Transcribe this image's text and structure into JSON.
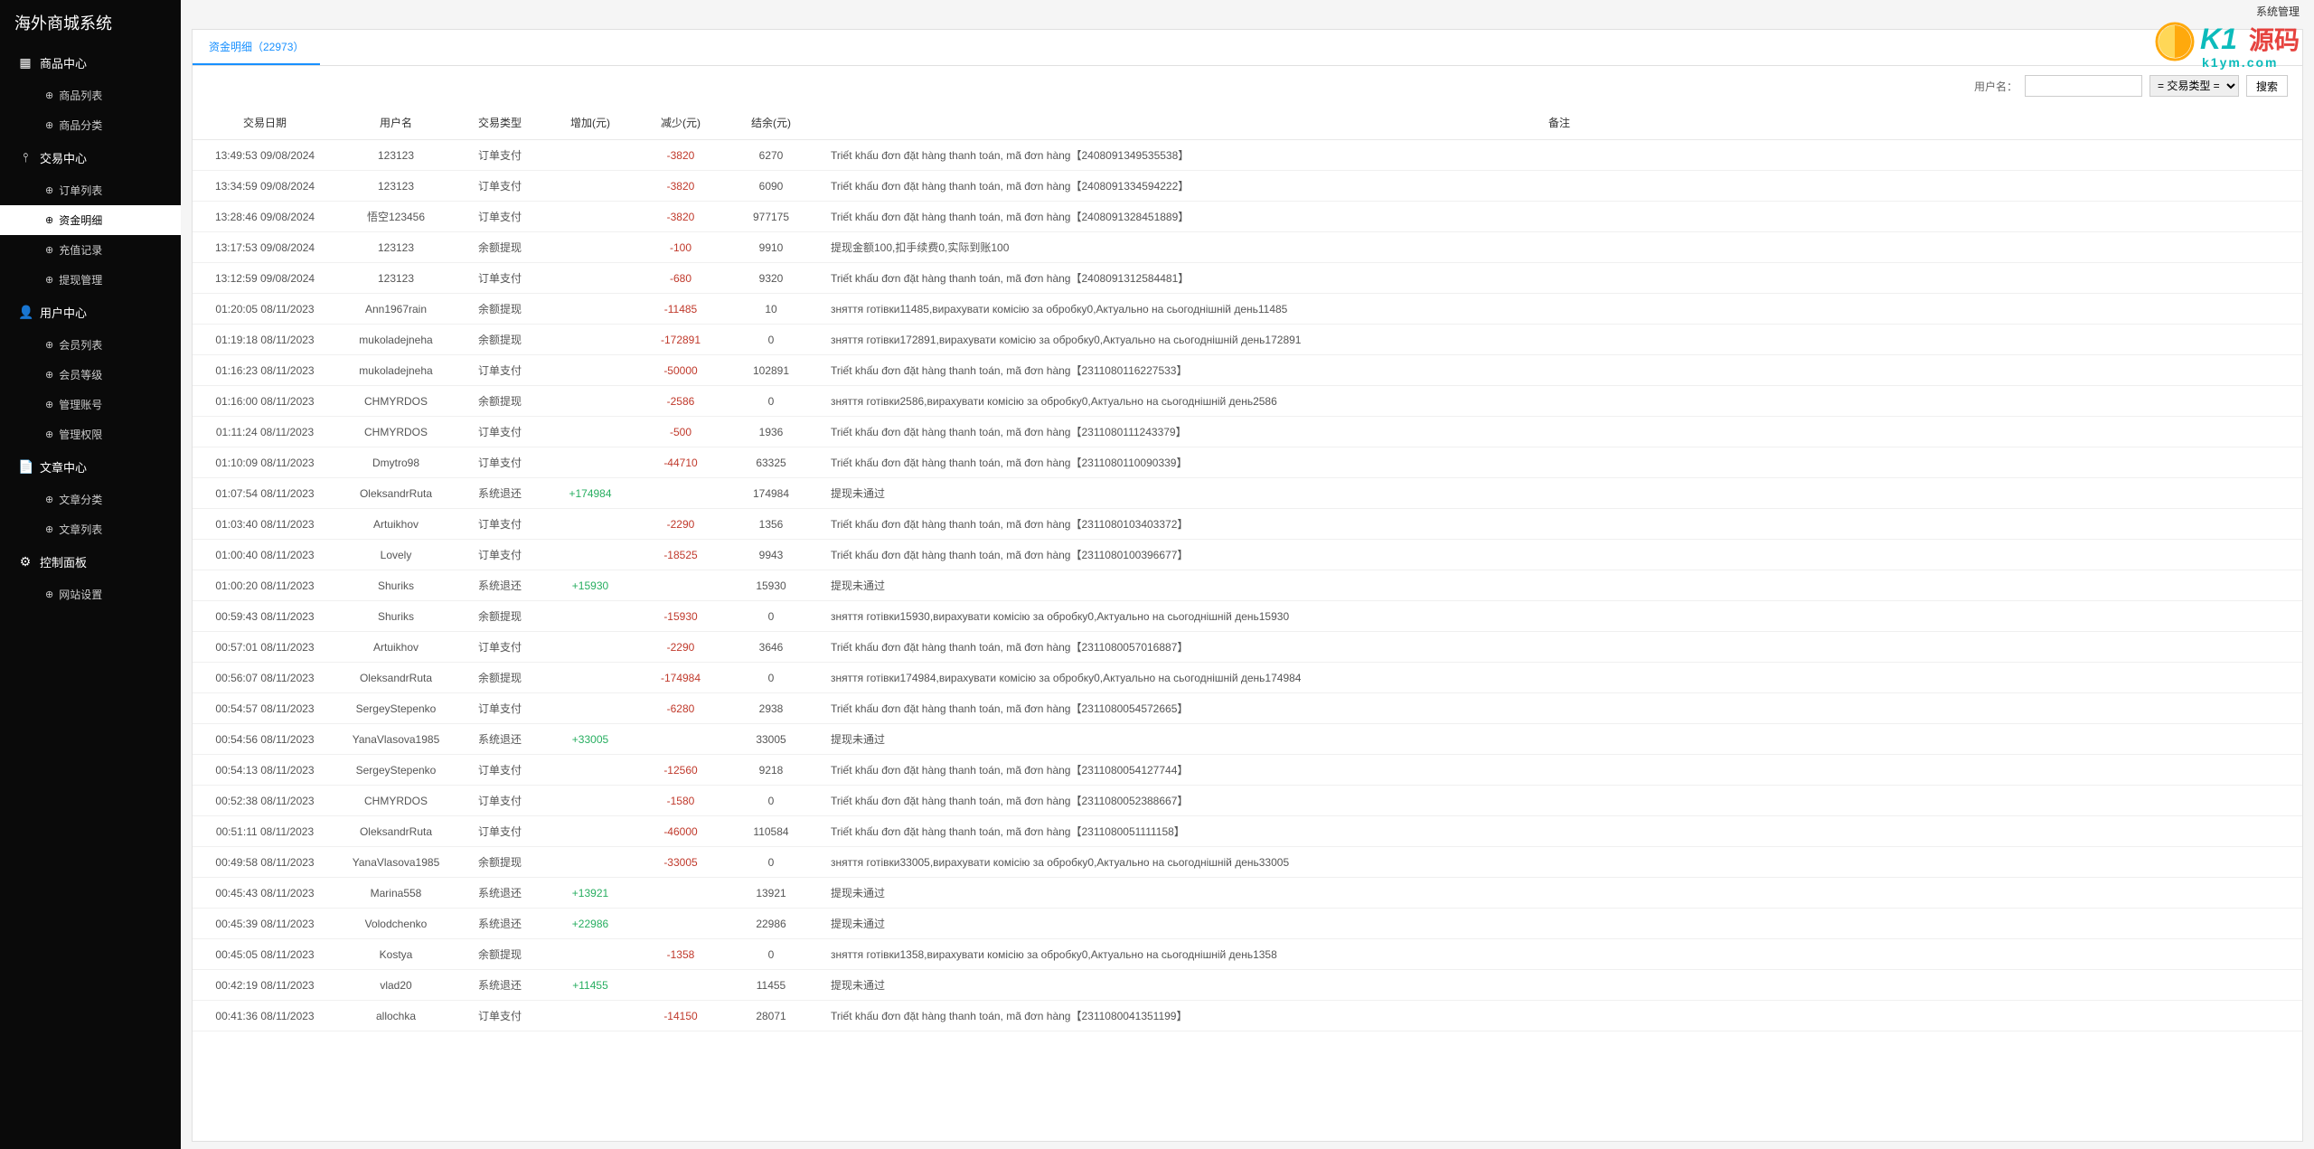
{
  "app_title": "海外商城系统",
  "topbar": {
    "admin_link": "系统管理"
  },
  "menu": [
    {
      "title": "商品中心",
      "icon": "▦",
      "items": [
        {
          "label": "商品列表",
          "icon": "⊕"
        },
        {
          "label": "商品分类",
          "icon": "⊕"
        }
      ]
    },
    {
      "title": "交易中心",
      "icon": "⫯",
      "items": [
        {
          "label": "订单列表",
          "icon": "⊕"
        },
        {
          "label": "资金明细",
          "icon": "⊕",
          "active": true
        },
        {
          "label": "充值记录",
          "icon": "⊕"
        },
        {
          "label": "提现管理",
          "icon": "⊕"
        }
      ]
    },
    {
      "title": "用户中心",
      "icon": "👤",
      "items": [
        {
          "label": "会员列表",
          "icon": "⊕"
        },
        {
          "label": "会员等级",
          "icon": "⊕"
        },
        {
          "label": "管理账号",
          "icon": "⊕"
        },
        {
          "label": "管理权限",
          "icon": "⊕"
        }
      ]
    },
    {
      "title": "文章中心",
      "icon": "📄",
      "items": [
        {
          "label": "文章分类",
          "icon": "⊕"
        },
        {
          "label": "文章列表",
          "icon": "⊕"
        }
      ]
    },
    {
      "title": "控制面板",
      "icon": "⚙",
      "items": [
        {
          "label": "网站设置",
          "icon": "⊕"
        }
      ]
    }
  ],
  "tab": {
    "label": "资金明细（22973）"
  },
  "filter": {
    "user_label": "用户名：",
    "user_value": "",
    "type_placeholder": "= 交易类型 =",
    "search_btn": "搜索"
  },
  "columns": [
    "交易日期",
    "用户名",
    "交易类型",
    "增加(元)",
    "减少(元)",
    "结余(元)",
    "备注"
  ],
  "rows": [
    {
      "date": "13:49:53 09/08/2024",
      "user": "123123",
      "type": "订单支付",
      "inc": "",
      "dec": "-3820",
      "bal": "6270",
      "remark": "Triết khấu đơn đặt hàng thanh toán, mã đơn hàng【2408091349535538】"
    },
    {
      "date": "13:34:59 09/08/2024",
      "user": "123123",
      "type": "订单支付",
      "inc": "",
      "dec": "-3820",
      "bal": "6090",
      "remark": "Triết khấu đơn đặt hàng thanh toán, mã đơn hàng【2408091334594222】"
    },
    {
      "date": "13:28:46 09/08/2024",
      "user": "悟空123456",
      "type": "订单支付",
      "inc": "",
      "dec": "-3820",
      "bal": "977175",
      "remark": "Triết khấu đơn đặt hàng thanh toán, mã đơn hàng【2408091328451889】"
    },
    {
      "date": "13:17:53 09/08/2024",
      "user": "123123",
      "type": "余额提现",
      "inc": "",
      "dec": "-100",
      "bal": "9910",
      "remark": "提现金额100,扣手续费0,实际到账100"
    },
    {
      "date": "13:12:59 09/08/2024",
      "user": "123123",
      "type": "订单支付",
      "inc": "",
      "dec": "-680",
      "bal": "9320",
      "remark": "Triết khấu đơn đặt hàng thanh toán, mã đơn hàng【2408091312584481】"
    },
    {
      "date": "01:20:05 08/11/2023",
      "user": "Ann1967rain",
      "type": "余额提现",
      "inc": "",
      "dec": "-11485",
      "bal": "10",
      "remark": "зняття готівки11485,вирахувати комісію за обробку0,Актуально на сьогоднішній день11485"
    },
    {
      "date": "01:19:18 08/11/2023",
      "user": "mukoladejneha",
      "type": "余额提现",
      "inc": "",
      "dec": "-172891",
      "bal": "0",
      "remark": "зняття готівки172891,вирахувати комісію за обробку0,Актуально на сьогоднішній день172891"
    },
    {
      "date": "01:16:23 08/11/2023",
      "user": "mukoladejneha",
      "type": "订单支付",
      "inc": "",
      "dec": "-50000",
      "bal": "102891",
      "remark": "Triết khấu đơn đặt hàng thanh toán, mã đơn hàng【2311080116227533】"
    },
    {
      "date": "01:16:00 08/11/2023",
      "user": "CHMYRDOS",
      "type": "余额提现",
      "inc": "",
      "dec": "-2586",
      "bal": "0",
      "remark": "зняття готівки2586,вирахувати комісію за обробку0,Актуально на сьогоднішній день2586"
    },
    {
      "date": "01:11:24 08/11/2023",
      "user": "CHMYRDOS",
      "type": "订单支付",
      "inc": "",
      "dec": "-500",
      "bal": "1936",
      "remark": "Triết khấu đơn đặt hàng thanh toán, mã đơn hàng【2311080111243379】"
    },
    {
      "date": "01:10:09 08/11/2023",
      "user": "Dmytro98",
      "type": "订单支付",
      "inc": "",
      "dec": "-44710",
      "bal": "63325",
      "remark": "Triết khấu đơn đặt hàng thanh toán, mã đơn hàng【2311080110090339】"
    },
    {
      "date": "01:07:54 08/11/2023",
      "user": "OleksandrRuta",
      "type": "系统退还",
      "inc": "+174984",
      "dec": "",
      "bal": "174984",
      "remark": "提现未通过"
    },
    {
      "date": "01:03:40 08/11/2023",
      "user": "Artuikhov",
      "type": "订单支付",
      "inc": "",
      "dec": "-2290",
      "bal": "1356",
      "remark": "Triết khấu đơn đặt hàng thanh toán, mã đơn hàng【2311080103403372】"
    },
    {
      "date": "01:00:40 08/11/2023",
      "user": "Lovely",
      "type": "订单支付",
      "inc": "",
      "dec": "-18525",
      "bal": "9943",
      "remark": "Triết khấu đơn đặt hàng thanh toán, mã đơn hàng【2311080100396677】"
    },
    {
      "date": "01:00:20 08/11/2023",
      "user": "Shuriks",
      "type": "系统退还",
      "inc": "+15930",
      "dec": "",
      "bal": "15930",
      "remark": "提现未通过"
    },
    {
      "date": "00:59:43 08/11/2023",
      "user": "Shuriks",
      "type": "余额提现",
      "inc": "",
      "dec": "-15930",
      "bal": "0",
      "remark": "зняття готівки15930,вирахувати комісію за обробку0,Актуально на сьогоднішній день15930"
    },
    {
      "date": "00:57:01 08/11/2023",
      "user": "Artuikhov",
      "type": "订单支付",
      "inc": "",
      "dec": "-2290",
      "bal": "3646",
      "remark": "Triết khấu đơn đặt hàng thanh toán, mã đơn hàng【2311080057016887】"
    },
    {
      "date": "00:56:07 08/11/2023",
      "user": "OleksandrRuta",
      "type": "余额提现",
      "inc": "",
      "dec": "-174984",
      "bal": "0",
      "remark": "зняття готівки174984,вирахувати комісію за обробку0,Актуально на сьогоднішній день174984"
    },
    {
      "date": "00:54:57 08/11/2023",
      "user": "SergeyStepenko",
      "type": "订单支付",
      "inc": "",
      "dec": "-6280",
      "bal": "2938",
      "remark": "Triết khấu đơn đặt hàng thanh toán, mã đơn hàng【2311080054572665】"
    },
    {
      "date": "00:54:56 08/11/2023",
      "user": "YanaVlasova1985",
      "type": "系统退还",
      "inc": "+33005",
      "dec": "",
      "bal": "33005",
      "remark": "提现未通过"
    },
    {
      "date": "00:54:13 08/11/2023",
      "user": "SergeyStepenko",
      "type": "订单支付",
      "inc": "",
      "dec": "-12560",
      "bal": "9218",
      "remark": "Triết khấu đơn đặt hàng thanh toán, mã đơn hàng【2311080054127744】"
    },
    {
      "date": "00:52:38 08/11/2023",
      "user": "CHMYRDOS",
      "type": "订单支付",
      "inc": "",
      "dec": "-1580",
      "bal": "0",
      "remark": "Triết khấu đơn đặt hàng thanh toán, mã đơn hàng【2311080052388667】"
    },
    {
      "date": "00:51:11 08/11/2023",
      "user": "OleksandrRuta",
      "type": "订单支付",
      "inc": "",
      "dec": "-46000",
      "bal": "110584",
      "remark": "Triết khấu đơn đặt hàng thanh toán, mã đơn hàng【2311080051111158】"
    },
    {
      "date": "00:49:58 08/11/2023",
      "user": "YanaVlasova1985",
      "type": "余额提现",
      "inc": "",
      "dec": "-33005",
      "bal": "0",
      "remark": "зняття готівки33005,вирахувати комісію за обробку0,Актуально на сьогоднішній день33005"
    },
    {
      "date": "00:45:43 08/11/2023",
      "user": "Marina558",
      "type": "系统退还",
      "inc": "+13921",
      "dec": "",
      "bal": "13921",
      "remark": "提现未通过"
    },
    {
      "date": "00:45:39 08/11/2023",
      "user": "Volodchenko",
      "type": "系统退还",
      "inc": "+22986",
      "dec": "",
      "bal": "22986",
      "remark": "提现未通过"
    },
    {
      "date": "00:45:05 08/11/2023",
      "user": "Kostya",
      "type": "余额提现",
      "inc": "",
      "dec": "-1358",
      "bal": "0",
      "remark": "зняття готівки1358,вирахувати комісію за обробку0,Актуально на сьогоднішній день1358"
    },
    {
      "date": "00:42:19 08/11/2023",
      "user": "vlad20",
      "type": "系统退还",
      "inc": "+11455",
      "dec": "",
      "bal": "11455",
      "remark": "提现未通过"
    },
    {
      "date": "00:41:36 08/11/2023",
      "user": "allochka",
      "type": "订单支付",
      "inc": "",
      "dec": "-14150",
      "bal": "28071",
      "remark": "Triết khấu đơn đặt hàng thanh toán, mã đơn hàng【2311080041351199】"
    }
  ],
  "logo": {
    "k1": "K1",
    "ym": "源码",
    "url": "k1ym.com",
    "teal": "#00B8B8",
    "red": "#E53935"
  }
}
